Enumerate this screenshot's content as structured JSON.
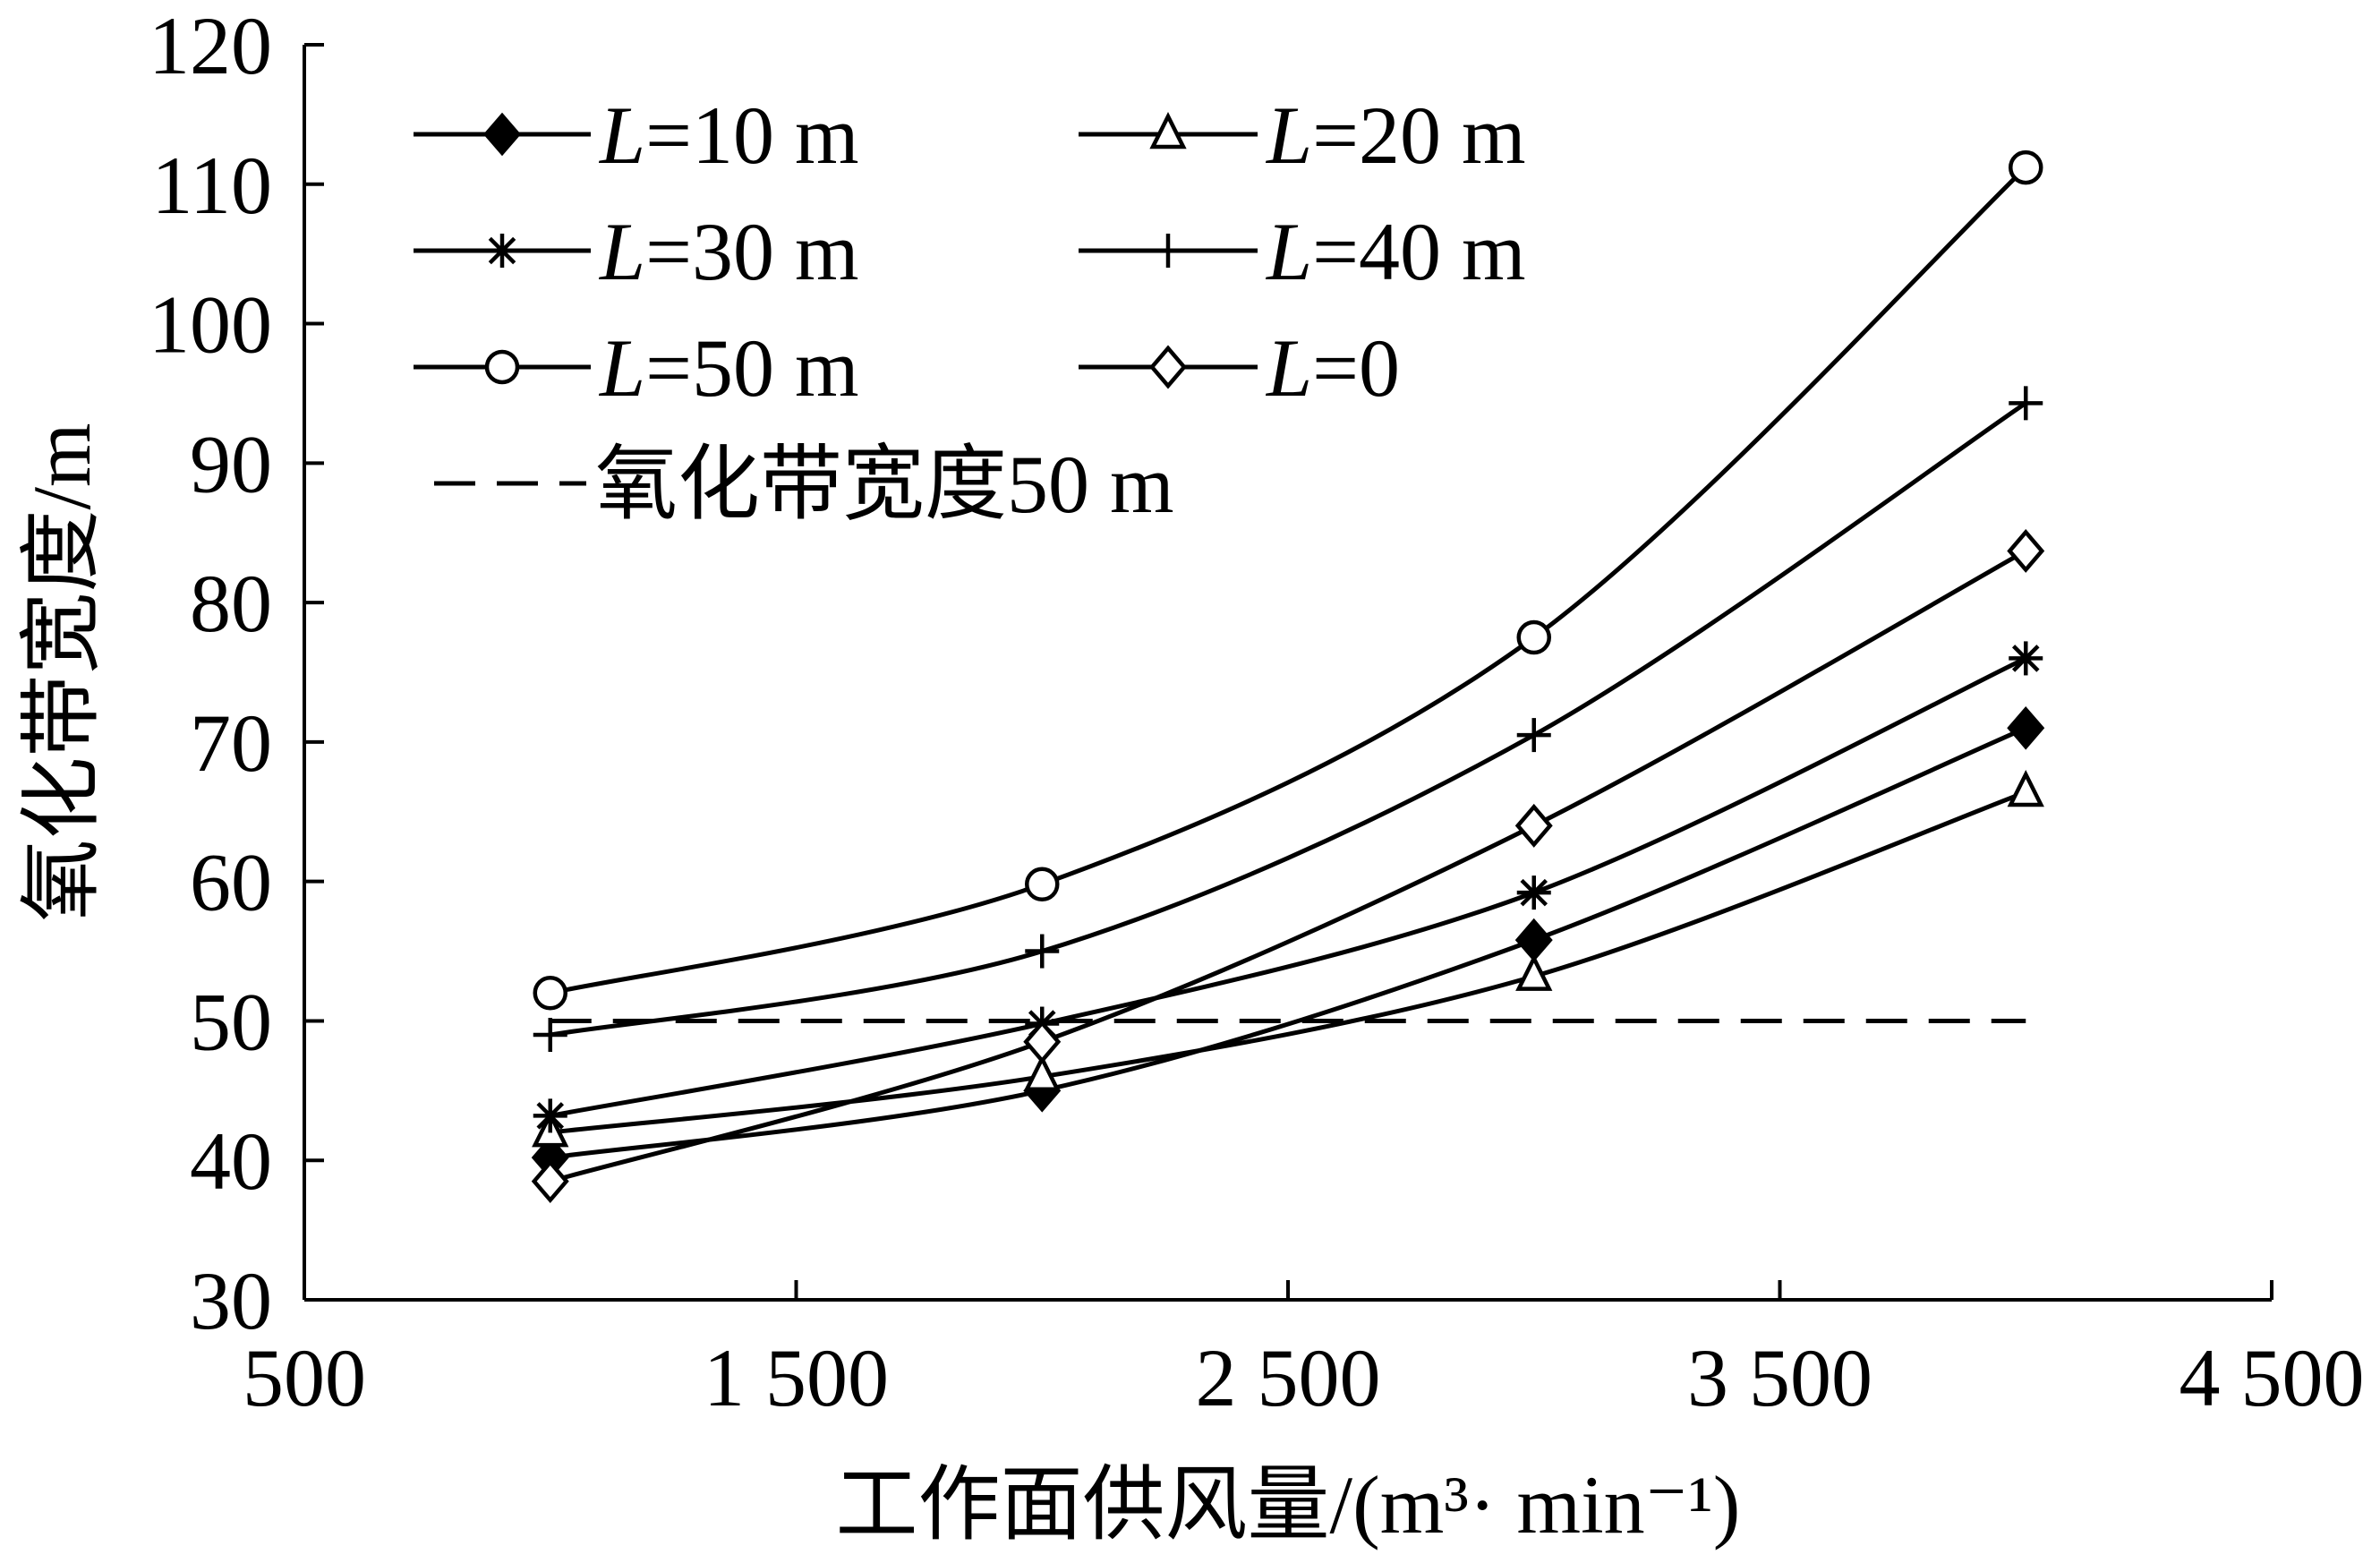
{
  "chart_data": {
    "type": "line",
    "xlabel": "工作面供风量/(m³· min⁻¹)",
    "ylabel": "氧化带宽度/m",
    "xlim": [
      500,
      4500
    ],
    "ylim": [
      30,
      120
    ],
    "x_ticks": [
      500,
      1500,
      2500,
      3500,
      4500
    ],
    "x_tick_labels": [
      "500",
      "1 500",
      "2 500",
      "3 500",
      "4 500"
    ],
    "y_ticks": [
      30,
      40,
      50,
      60,
      70,
      80,
      90,
      100,
      110,
      120
    ],
    "y_tick_labels": [
      "30",
      "40",
      "50",
      "60",
      "70",
      "80",
      "90",
      "100",
      "110",
      "120"
    ],
    "grid": false,
    "legend_position": "top-left",
    "x": [
      1000,
      2000,
      3000,
      4000
    ],
    "series": [
      {
        "name": "L=10 m",
        "name_parts": [
          "L",
          "=10 m"
        ],
        "marker": "diamond-filled",
        "values": [
          40.2,
          45.0,
          55.8,
          71.0
        ]
      },
      {
        "name": "L=20 m",
        "name_parts": [
          "L",
          "=20 m"
        ],
        "marker": "triangle-open",
        "values": [
          42.0,
          46.0,
          53.2,
          66.4
        ]
      },
      {
        "name": "L=30 m",
        "name_parts": [
          "L",
          "=30 m"
        ],
        "marker": "asterisk",
        "values": [
          43.2,
          49.8,
          59.2,
          76.0
        ]
      },
      {
        "name": "L=40 m",
        "name_parts": [
          "L",
          "=40 m"
        ],
        "marker": "plus",
        "values": [
          49.0,
          55.0,
          70.5,
          94.3
        ]
      },
      {
        "name": "L=50 m",
        "name_parts": [
          "L",
          "=50 m"
        ],
        "marker": "circle-open",
        "values": [
          52.0,
          59.8,
          77.5,
          111.2
        ]
      },
      {
        "name": "L=0",
        "name_parts": [
          "L",
          "=0"
        ],
        "marker": "diamond-open",
        "values": [
          38.5,
          48.5,
          64.0,
          83.7
        ]
      }
    ],
    "reference_line": {
      "name": "氧化带宽度50 m",
      "y": 50,
      "x_range": [
        1000,
        4000
      ],
      "style": "dashed"
    }
  }
}
